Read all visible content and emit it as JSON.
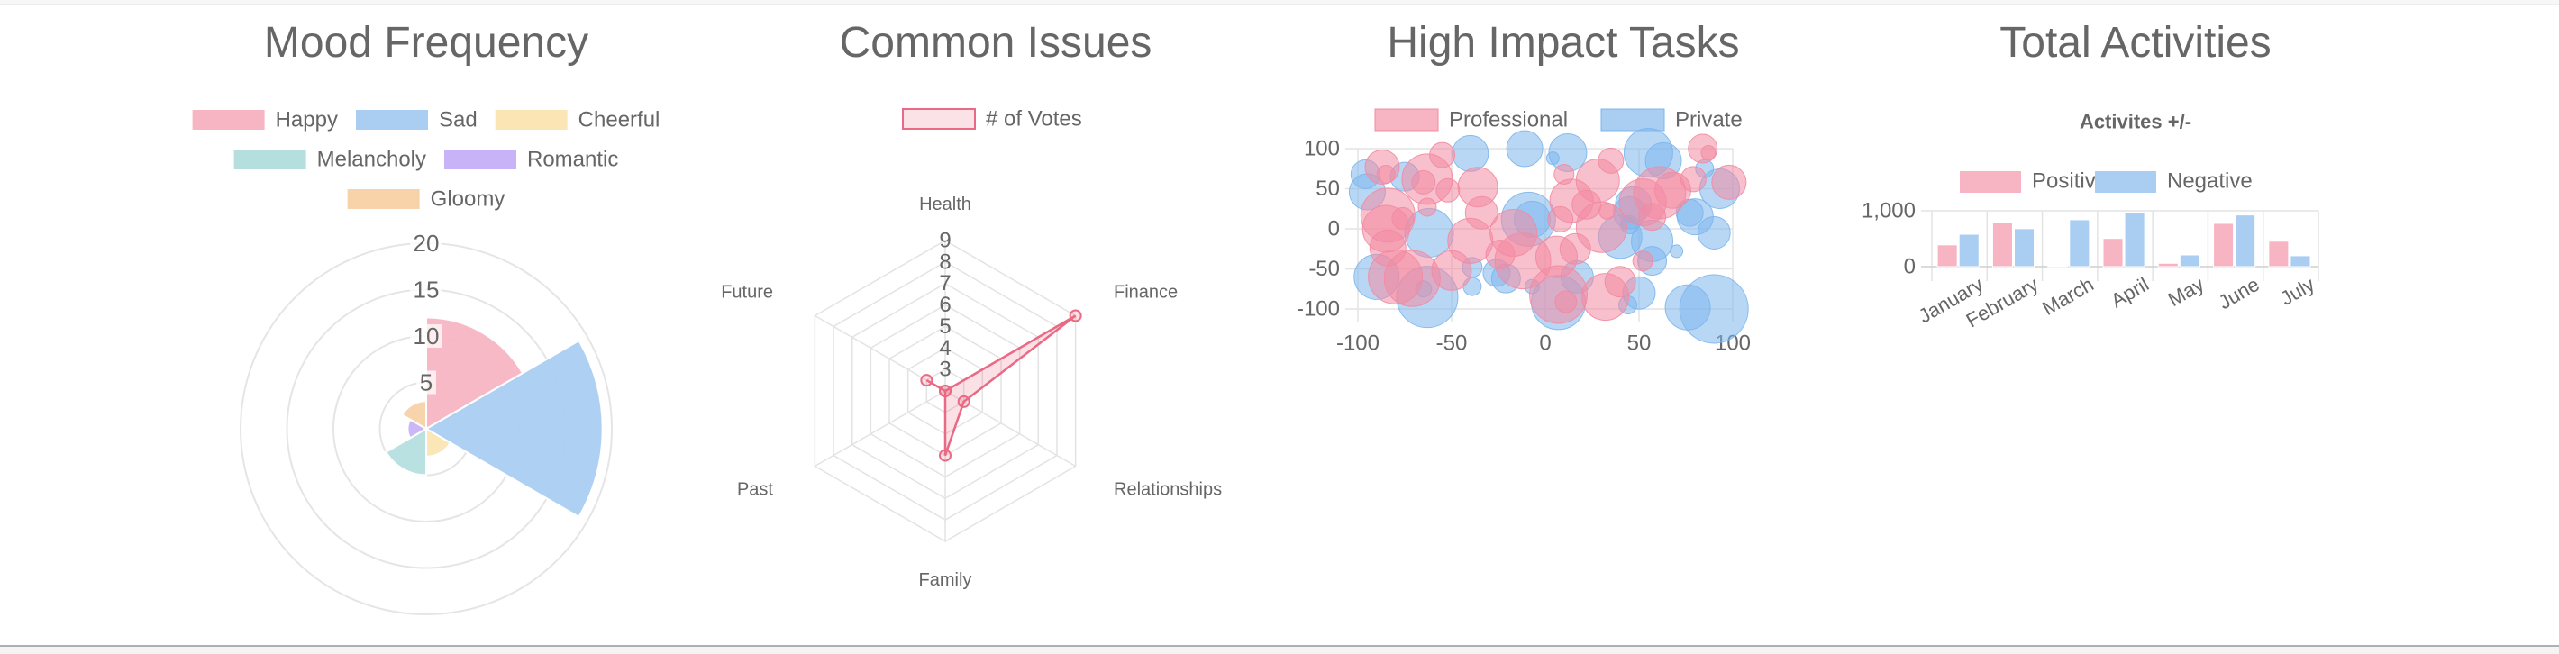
{
  "charts": {
    "mood": {
      "title": "Mood Frequency"
    },
    "issues": {
      "title": "Common Issues"
    },
    "tasks": {
      "title": "High Impact Tasks"
    },
    "activities": {
      "title": "Total Activities"
    }
  },
  "chart_data": [
    {
      "type": "polarArea",
      "title": "Mood Frequency",
      "labels": [
        "Happy",
        "Sad",
        "Cheerful",
        "Melancholy",
        "Romantic",
        "Gloomy"
      ],
      "values": [
        12,
        19,
        3,
        5,
        2,
        3
      ],
      "colors": [
        "#f7b5c3",
        "#aacef2",
        "#fbe5b4",
        "#b5dfdf",
        "#c8b2f8",
        "#f8d2a9"
      ],
      "r_ticks": [
        "5",
        "10",
        "15",
        "20"
      ],
      "r_range": [
        0,
        20
      ],
      "legend": "top"
    },
    {
      "type": "radar",
      "title": "Common Issues",
      "labels": [
        "Health",
        "Finance",
        "Relationships",
        "Family",
        "Past",
        "Future"
      ],
      "series": [
        {
          "name": "# of Votes",
          "values": [
            2,
            9,
            3,
            5,
            2,
            3
          ],
          "color": "#ea6984",
          "fill": "#fbe2e7"
        }
      ],
      "r_ticks": [
        "3",
        "4",
        "5",
        "6",
        "7",
        "8",
        "9"
      ],
      "r_range": [
        2,
        9
      ],
      "legend": "top"
    },
    {
      "type": "bubble",
      "title": "High Impact Tasks",
      "xlim": [
        -100,
        100
      ],
      "ylim": [
        -100,
        100
      ],
      "x_ticks": [
        "-100",
        "-50",
        "0",
        "50",
        "100"
      ],
      "y_ticks": [
        "100",
        "50",
        "0",
        "-50",
        "-100"
      ],
      "legend": "top",
      "series": [
        {
          "name": "Professional",
          "color": "#f28ba2",
          "legend_color": "#f7b5c3",
          "points": [
            {
              "x": -87,
              "y": 77,
              "r": 19
            },
            {
              "x": -85,
              "y": 68,
              "r": 10
            },
            {
              "x": -55,
              "y": 92,
              "r": 14
            },
            {
              "x": -63,
              "y": 62,
              "r": 28
            },
            {
              "x": -65,
              "y": 58,
              "r": 13
            },
            {
              "x": -63,
              "y": 27,
              "r": 10
            },
            {
              "x": -52,
              "y": 48,
              "r": 13
            },
            {
              "x": -36,
              "y": 52,
              "r": 22
            },
            {
              "x": -34,
              "y": 20,
              "r": 18
            },
            {
              "x": -84,
              "y": 17,
              "r": 30
            },
            {
              "x": -85,
              "y": 0,
              "r": 26
            },
            {
              "x": -76,
              "y": 13,
              "r": 12
            },
            {
              "x": -84,
              "y": -24,
              "r": 20
            },
            {
              "x": -80,
              "y": -60,
              "r": 30
            },
            {
              "x": -71,
              "y": -62,
              "r": 31
            },
            {
              "x": -50,
              "y": -52,
              "r": 22
            },
            {
              "x": -40,
              "y": -15,
              "r": 25
            },
            {
              "x": -24,
              "y": -32,
              "r": 16
            },
            {
              "x": -12,
              "y": -40,
              "r": 31
            },
            {
              "x": -17,
              "y": -5,
              "r": 26
            },
            {
              "x": 8,
              "y": 12,
              "r": 14
            },
            {
              "x": 14,
              "y": 35,
              "r": 24
            },
            {
              "x": 28,
              "y": 60,
              "r": 24
            },
            {
              "x": 35,
              "y": 85,
              "r": 14
            },
            {
              "x": 22,
              "y": 30,
              "r": 16
            },
            {
              "x": 30,
              "y": 2,
              "r": 28
            },
            {
              "x": 10,
              "y": 68,
              "r": 11
            },
            {
              "x": 6,
              "y": -35,
              "r": 23
            },
            {
              "x": 16,
              "y": -25,
              "r": 17
            },
            {
              "x": 11,
              "y": -91,
              "r": 12
            },
            {
              "x": 7,
              "y": -82,
              "r": 32
            },
            {
              "x": 32,
              "y": -85,
              "r": 26
            },
            {
              "x": 40,
              "y": -66,
              "r": 17
            },
            {
              "x": 52,
              "y": 33,
              "r": 26
            },
            {
              "x": 57,
              "y": 15,
              "r": 15
            },
            {
              "x": 61,
              "y": 45,
              "r": 29
            },
            {
              "x": 68,
              "y": 48,
              "r": 20
            },
            {
              "x": 79,
              "y": 62,
              "r": 14
            },
            {
              "x": 84,
              "y": 100,
              "r": 16
            },
            {
              "x": 87,
              "y": 95,
              "r": 8
            },
            {
              "x": 98,
              "y": 58,
              "r": 19
            },
            {
              "x": 52,
              "y": -40,
              "r": 11
            },
            {
              "x": 33,
              "y": 22,
              "r": 9
            }
          ]
        },
        {
          "name": "Private",
          "color": "#7db6ec",
          "legend_color": "#aacef2",
          "points": [
            {
              "x": -96,
              "y": 68,
              "r": 16
            },
            {
              "x": -95,
              "y": 46,
              "r": 20
            },
            {
              "x": -75,
              "y": 65,
              "r": 16
            },
            {
              "x": -40,
              "y": 94,
              "r": 20
            },
            {
              "x": -11,
              "y": 100,
              "r": 20
            },
            {
              "x": 12,
              "y": 95,
              "r": 21
            },
            {
              "x": 4,
              "y": 88,
              "r": 7
            },
            {
              "x": 55,
              "y": 95,
              "r": 27
            },
            {
              "x": 63,
              "y": 85,
              "r": 20
            },
            {
              "x": 85,
              "y": 75,
              "r": 10
            },
            {
              "x": -9,
              "y": 12,
              "r": 30
            },
            {
              "x": 47,
              "y": 30,
              "r": 20
            },
            {
              "x": 45,
              "y": 20,
              "r": 18
            },
            {
              "x": 45,
              "y": 5,
              "r": 10
            },
            {
              "x": 77,
              "y": 20,
              "r": 15
            },
            {
              "x": 80,
              "y": 15,
              "r": 20
            },
            {
              "x": 93,
              "y": 50,
              "r": 22
            },
            {
              "x": 90,
              "y": -5,
              "r": 18
            },
            {
              "x": 70,
              "y": -28,
              "r": 7
            },
            {
              "x": 57,
              "y": -40,
              "r": 16
            },
            {
              "x": 57,
              "y": -15,
              "r": 23
            },
            {
              "x": 40,
              "y": -10,
              "r": 24
            },
            {
              "x": -62,
              "y": -5,
              "r": 27
            },
            {
              "x": -90,
              "y": -60,
              "r": 25
            },
            {
              "x": -63,
              "y": -85,
              "r": 34
            },
            {
              "x": -65,
              "y": -75,
              "r": 9
            },
            {
              "x": -39,
              "y": -48,
              "r": 11
            },
            {
              "x": -39,
              "y": -72,
              "r": 10
            },
            {
              "x": -26,
              "y": -55,
              "r": 15
            },
            {
              "x": -21,
              "y": -62,
              "r": 16
            },
            {
              "x": -7,
              "y": -72,
              "r": 8
            },
            {
              "x": 7,
              "y": -92,
              "r": 30
            },
            {
              "x": 17,
              "y": -60,
              "r": 18
            },
            {
              "x": 50,
              "y": -80,
              "r": 18
            },
            {
              "x": 44,
              "y": -95,
              "r": 10
            },
            {
              "x": 76,
              "y": -98,
              "r": 25
            },
            {
              "x": 90,
              "y": -100,
              "r": 38
            },
            {
              "x": -7,
              "y": 12,
              "r": 20
            }
          ]
        }
      ]
    },
    {
      "type": "bar",
      "title": "Total Activities",
      "subtitle": "Activites +/-",
      "categories": [
        "January",
        "February",
        "March",
        "April",
        "May",
        "June",
        "July"
      ],
      "series": [
        {
          "name": "Positive",
          "values": [
            390,
            785,
            15,
            505,
            60,
            775,
            455
          ],
          "color": "#f7b5c3"
        },
        {
          "name": "Negative",
          "values": [
            580,
            680,
            840,
            960,
            210,
            925,
            195
          ],
          "color": "#aacef2"
        }
      ],
      "y_ticks": [
        "1,000",
        "0"
      ],
      "ylim": [
        0,
        1000
      ],
      "legend": "top"
    }
  ]
}
